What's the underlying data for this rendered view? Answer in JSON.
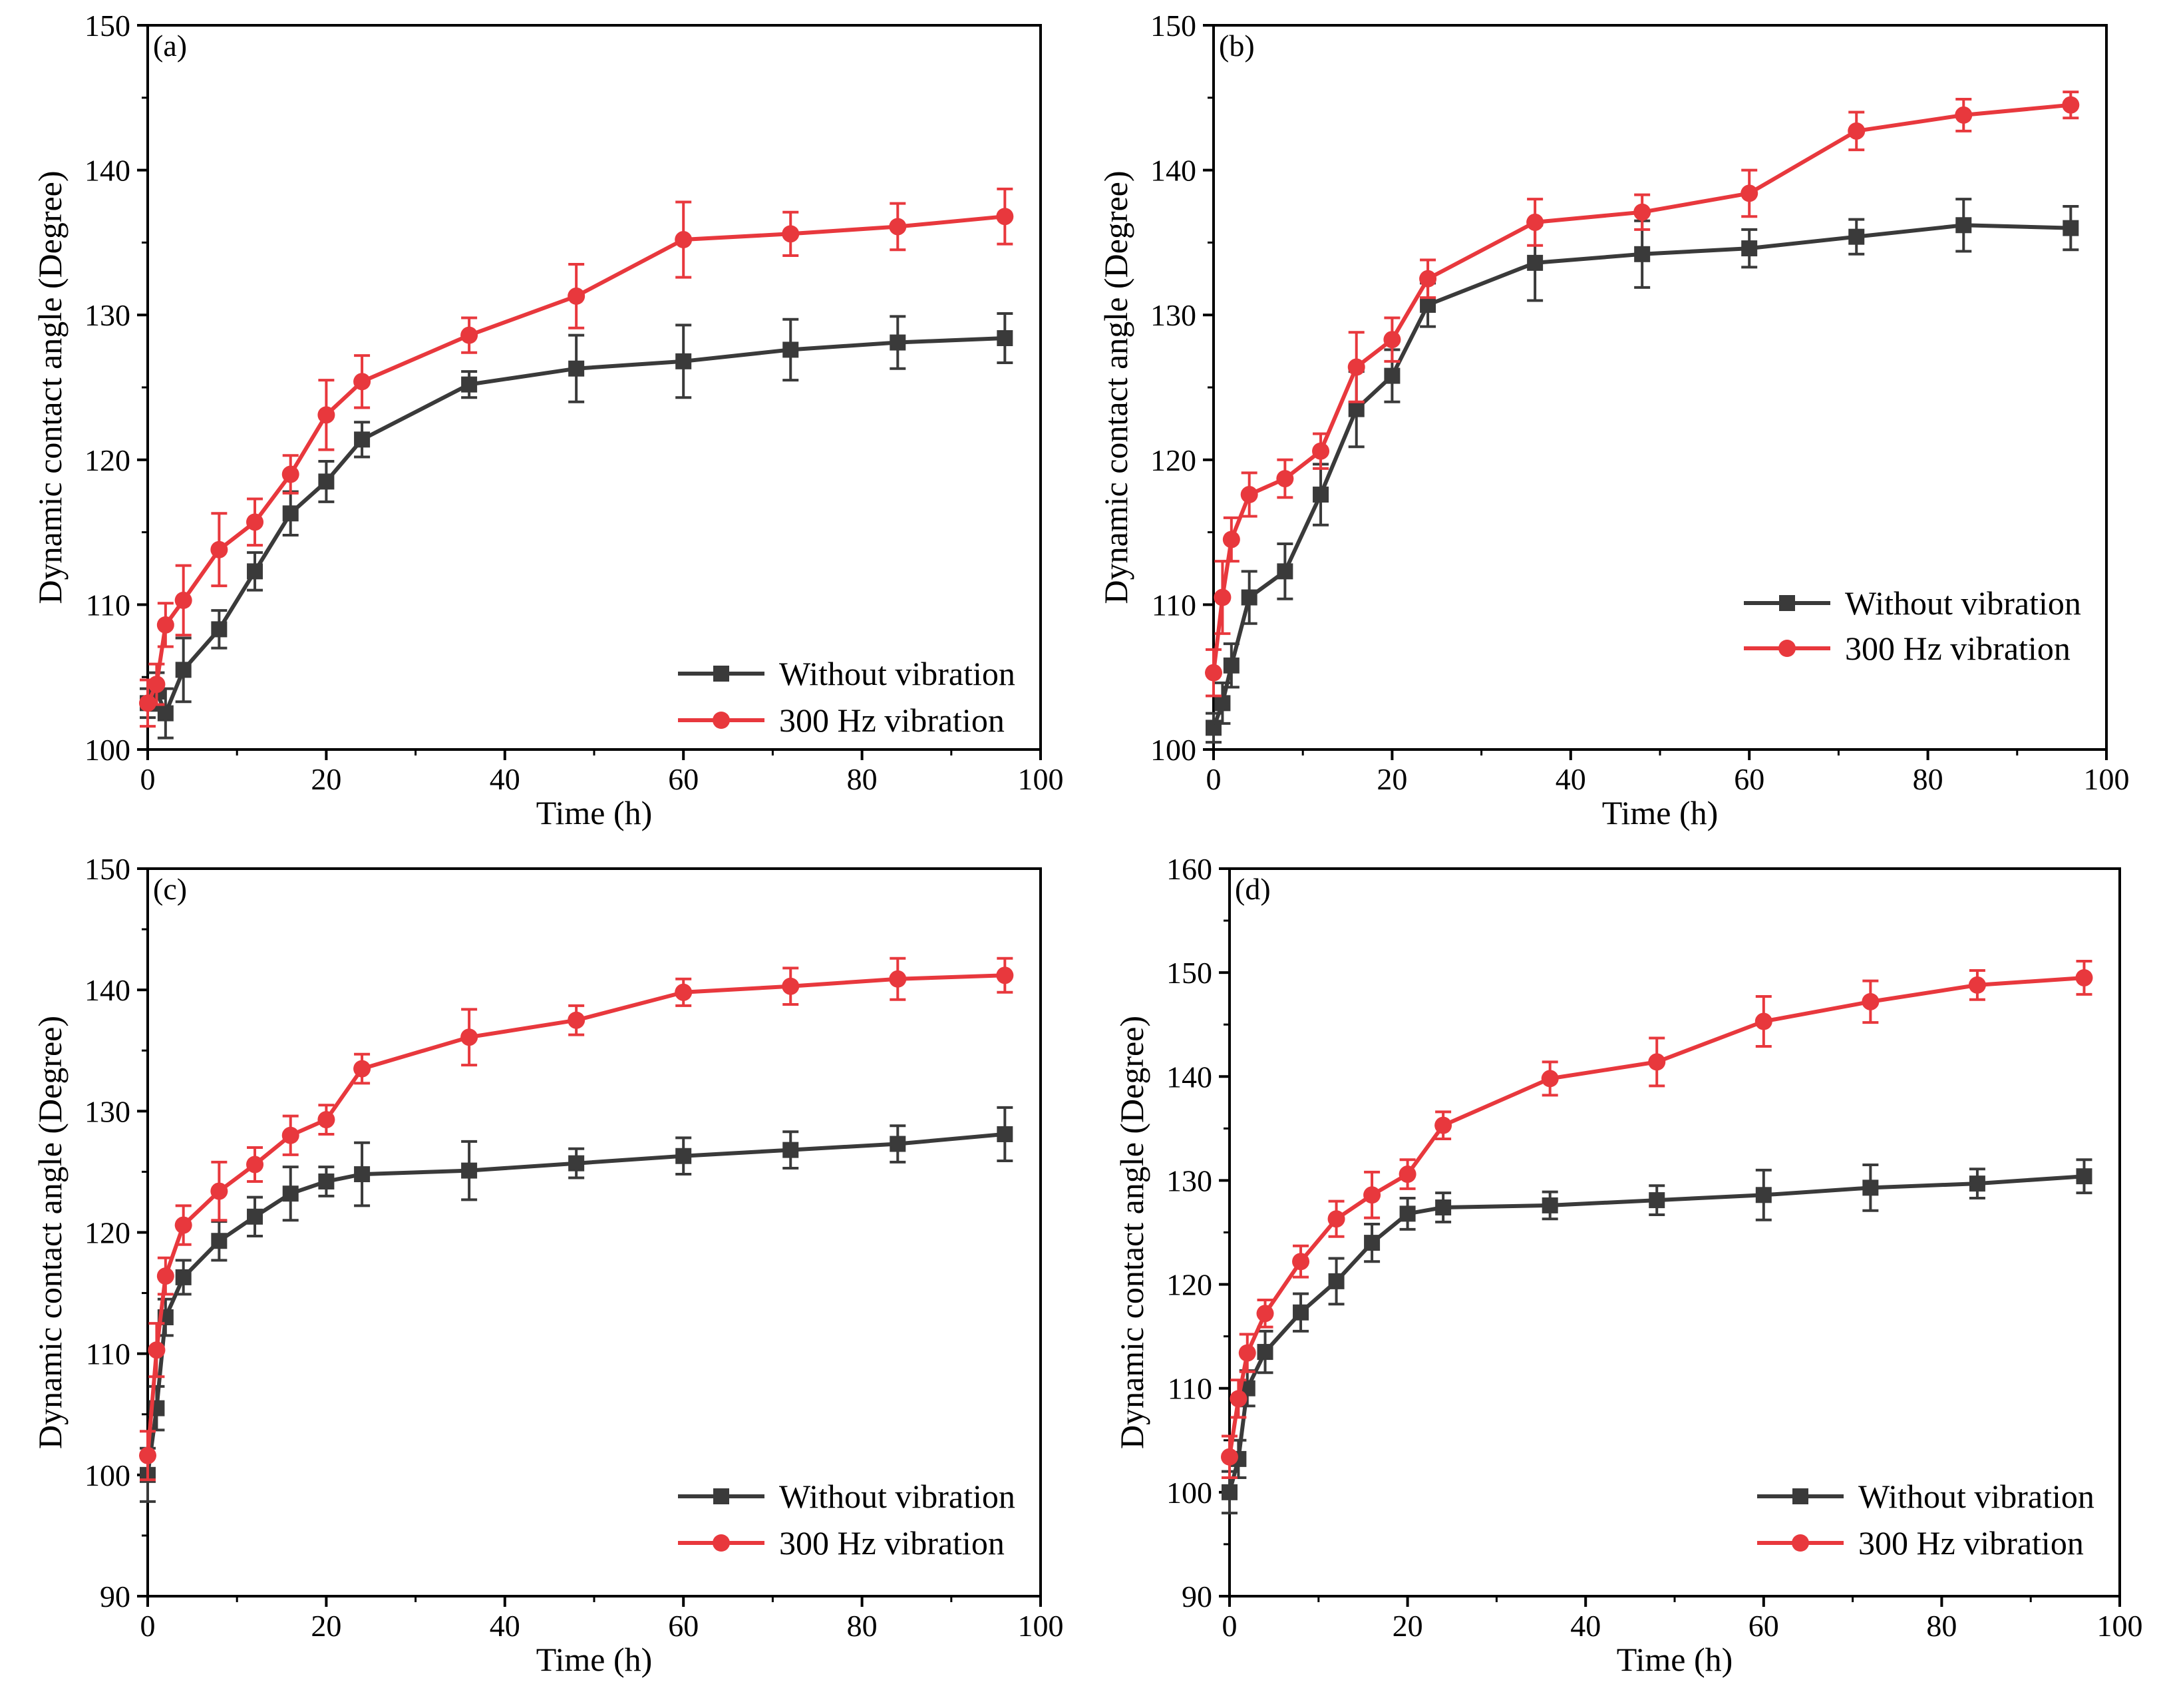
{
  "chart_data": [
    {
      "panel_label": "(a)",
      "type": "line",
      "xlabel": "Time (h)",
      "ylabel": "Dynamic contact angle (Degree)",
      "xlim": [
        0,
        100
      ],
      "ylim": [
        100,
        150
      ],
      "xticks": [
        "0",
        "20",
        "40",
        "60",
        "80",
        "100"
      ],
      "yticks": [
        "100",
        "110",
        "120",
        "130",
        "140",
        "150"
      ],
      "x": [
        0,
        1,
        2,
        4,
        8,
        12,
        16,
        20,
        24,
        36,
        48,
        60,
        72,
        84,
        96
      ],
      "legend_position": "bottom-right",
      "series": [
        {
          "name": "Without vibration",
          "color": "#3a3a3a",
          "marker": "square",
          "values": [
            103.2,
            104.0,
            102.5,
            105.5,
            108.3,
            112.3,
            116.3,
            118.5,
            121.4,
            125.2,
            126.3,
            126.8,
            127.6,
            128.1,
            128.4
          ],
          "errors": [
            1.0,
            1.3,
            1.7,
            2.2,
            1.3,
            1.3,
            1.5,
            1.4,
            1.2,
            0.9,
            2.3,
            2.5,
            2.1,
            1.8,
            1.7
          ]
        },
        {
          "name": "300 Hz vibration",
          "color": "#e8383d",
          "marker": "circle",
          "values": [
            103.2,
            104.5,
            108.6,
            110.3,
            113.8,
            115.7,
            119.0,
            123.1,
            125.4,
            128.6,
            131.3,
            135.2,
            135.6,
            136.1,
            136.8
          ],
          "errors": [
            1.6,
            1.4,
            1.5,
            2.4,
            2.5,
            1.6,
            1.3,
            2.4,
            1.8,
            1.2,
            2.2,
            2.6,
            1.5,
            1.6,
            1.9
          ]
        }
      ]
    },
    {
      "panel_label": "(b)",
      "type": "line",
      "xlabel": "Time (h)",
      "ylabel": "Dynamic contact angle (Degree)",
      "xlim": [
        0,
        100
      ],
      "ylim": [
        100,
        150
      ],
      "xticks": [
        "0",
        "20",
        "40",
        "60",
        "80",
        "100"
      ],
      "yticks": [
        "100",
        "110",
        "120",
        "130",
        "140",
        "150"
      ],
      "x": [
        0,
        1,
        2,
        4,
        8,
        12,
        16,
        20,
        24,
        36,
        48,
        60,
        72,
        84,
        96
      ],
      "legend_position": "middle-right",
      "series": [
        {
          "name": "Without vibration",
          "color": "#3a3a3a",
          "marker": "square",
          "values": [
            101.5,
            103.2,
            105.8,
            110.5,
            112.3,
            117.6,
            123.5,
            125.8,
            130.7,
            133.6,
            134.2,
            134.6,
            135.4,
            136.2,
            136.0
          ],
          "errors": [
            1.0,
            1.4,
            1.5,
            1.8,
            1.9,
            2.1,
            2.6,
            1.8,
            1.5,
            2.6,
            2.3,
            1.3,
            1.2,
            1.8,
            1.5
          ]
        },
        {
          "name": "300 Hz vibration",
          "color": "#e8383d",
          "marker": "circle",
          "values": [
            105.3,
            110.5,
            114.5,
            117.6,
            118.7,
            120.6,
            126.4,
            128.3,
            132.5,
            136.4,
            137.1,
            138.4,
            142.7,
            143.8,
            144.5
          ],
          "errors": [
            1.6,
            2.5,
            1.5,
            1.5,
            1.3,
            1.2,
            2.4,
            1.5,
            1.3,
            1.6,
            1.2,
            1.6,
            1.3,
            1.1,
            0.9
          ]
        }
      ]
    },
    {
      "panel_label": "(c)",
      "type": "line",
      "xlabel": "Time (h)",
      "ylabel": "Dynamic contact angle (Degree)",
      "xlim": [
        0,
        100
      ],
      "ylim": [
        90,
        150
      ],
      "xticks": [
        "0",
        "20",
        "40",
        "60",
        "80",
        "100"
      ],
      "yticks": [
        "90",
        "100",
        "110",
        "120",
        "130",
        "140",
        "150"
      ],
      "x": [
        0,
        1,
        2,
        4,
        8,
        12,
        16,
        20,
        24,
        36,
        48,
        60,
        72,
        84,
        96
      ],
      "legend_position": "bottom-right",
      "series": [
        {
          "name": "Without vibration",
          "color": "#3a3a3a",
          "marker": "square",
          "values": [
            100.0,
            105.5,
            113.0,
            116.3,
            119.3,
            121.3,
            123.2,
            124.2,
            124.8,
            125.1,
            125.7,
            126.3,
            126.8,
            127.3,
            128.1
          ],
          "errors": [
            2.2,
            1.8,
            1.5,
            1.4,
            1.6,
            1.6,
            2.2,
            1.2,
            2.6,
            2.4,
            1.2,
            1.5,
            1.5,
            1.5,
            2.2
          ]
        },
        {
          "name": "300 Hz vibration",
          "color": "#e8383d",
          "marker": "circle",
          "values": [
            101.6,
            110.3,
            116.4,
            120.6,
            123.4,
            125.6,
            128.0,
            129.3,
            133.5,
            136.1,
            137.5,
            139.8,
            140.3,
            140.9,
            141.2
          ],
          "errors": [
            2.0,
            2.2,
            1.5,
            1.6,
            2.4,
            1.4,
            1.6,
            1.2,
            1.2,
            2.3,
            1.2,
            1.1,
            1.5,
            1.7,
            1.4
          ]
        }
      ]
    },
    {
      "panel_label": "(d)",
      "type": "line",
      "xlabel": "Time (h)",
      "ylabel": "Dynamic contact angle (Degree)",
      "xlim": [
        0,
        100
      ],
      "ylim": [
        90,
        160
      ],
      "xticks": [
        "0",
        "20",
        "40",
        "60",
        "80",
        "100"
      ],
      "yticks": [
        "90",
        "100",
        "110",
        "120",
        "130",
        "140",
        "150",
        "160"
      ],
      "x": [
        0,
        1,
        2,
        4,
        8,
        12,
        16,
        20,
        24,
        36,
        48,
        60,
        72,
        84,
        96
      ],
      "legend_position": "bottom-right",
      "series": [
        {
          "name": "Without vibration",
          "color": "#3a3a3a",
          "marker": "square",
          "values": [
            100.0,
            103.2,
            110.0,
            113.5,
            117.3,
            120.3,
            124.0,
            126.8,
            127.4,
            127.6,
            128.1,
            128.6,
            129.3,
            129.7,
            130.4
          ],
          "errors": [
            2.0,
            1.8,
            1.7,
            2.0,
            1.8,
            2.2,
            1.8,
            1.5,
            1.4,
            1.3,
            1.4,
            2.4,
            2.2,
            1.4,
            1.6
          ]
        },
        {
          "name": "300 Hz vibration",
          "color": "#e8383d",
          "marker": "circle",
          "values": [
            103.4,
            109.0,
            113.4,
            117.2,
            122.2,
            126.3,
            128.6,
            130.6,
            135.3,
            139.8,
            141.4,
            145.3,
            147.2,
            148.8,
            149.5
          ],
          "errors": [
            2.0,
            1.8,
            1.8,
            1.3,
            1.5,
            1.7,
            2.2,
            1.4,
            1.3,
            1.6,
            2.3,
            2.4,
            2.0,
            1.4,
            1.6
          ]
        }
      ]
    }
  ]
}
